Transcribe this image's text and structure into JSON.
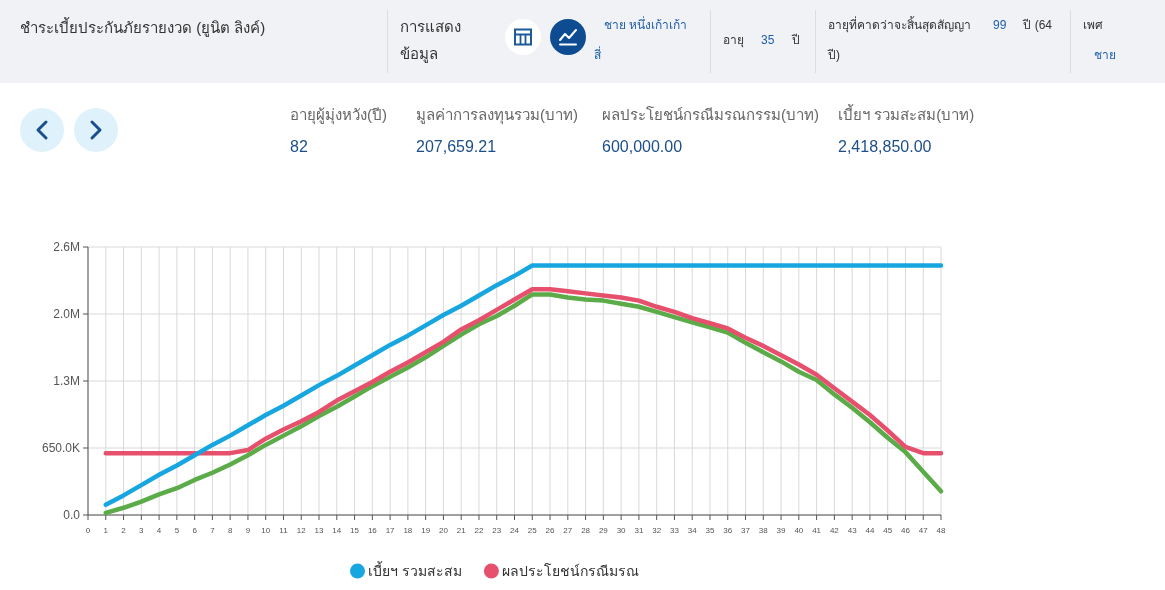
{
  "chart_data": {
    "type": "line",
    "title": "ชำระเบี้ยประกันภัยรายงวด (ยูนิต ลิงค์)",
    "annotations": [
      "การแสดงข้อมูล",
      "ชาย หนึ่งเก้าเก้าสี่",
      "อายุ",
      "35",
      "ปี",
      "อายุที่คาดว่าจะสิ้นสุดสัญญา",
      "99",
      "ปี (64 ปี)",
      "เพศ",
      "ชาย",
      "อายุผู้มุ่งหวัง(ปี)",
      "82",
      "มูลค่าการลงทุนรวม(บาท)",
      "207,659.21",
      "ผลประโยชน์กรณีมรณกรรม(บาท)",
      "600,000.00",
      "เบี้ยฯ รวมสะสม(บาท)",
      "2,418,850.00"
    ],
    "x": [
      1,
      2,
      3,
      4,
      5,
      6,
      7,
      8,
      9,
      10,
      11,
      12,
      13,
      14,
      15,
      16,
      17,
      18,
      19,
      20,
      21,
      22,
      23,
      24,
      25,
      26,
      27,
      28,
      29,
      30,
      31,
      32,
      33,
      34,
      35,
      36,
      37,
      38,
      39,
      40,
      41,
      42,
      43,
      44,
      45,
      46,
      47,
      48
    ],
    "xlim": [
      0,
      48
    ],
    "xticks": [
      0,
      1,
      2,
      3,
      4,
      5,
      6,
      7,
      8,
      9,
      10,
      11,
      12,
      13,
      14,
      15,
      16,
      17,
      18,
      19,
      20,
      21,
      22,
      23,
      24,
      25,
      26,
      27,
      28,
      29,
      30,
      31,
      32,
      33,
      34,
      35,
      36,
      37,
      38,
      39,
      40,
      41,
      42,
      43,
      44,
      45,
      46,
      47,
      48
    ],
    "ylim": [
      0,
      2600000
    ],
    "yticks": [
      {
        "value": 0,
        "label": "0.0"
      },
      {
        "value": 650000,
        "label": "650.0K"
      },
      {
        "value": 1300000,
        "label": "1.3M"
      },
      {
        "value": 1950000,
        "label": "2.0M"
      },
      {
        "value": 2600000,
        "label": "2.6M"
      }
    ],
    "grid": true,
    "legend": "bottom",
    "series": [
      {
        "name": "เบี้ยฯ รวมสะสม",
        "color": "#18a6e0",
        "values": [
          100000,
          190000,
          290000,
          390000,
          480000,
          580000,
          680000,
          770000,
          870000,
          970000,
          1060000,
          1160000,
          1260000,
          1350000,
          1450000,
          1550000,
          1650000,
          1740000,
          1840000,
          1940000,
          2030000,
          2130000,
          2230000,
          2320000,
          2420000,
          2420000,
          2420000,
          2420000,
          2420000,
          2420000,
          2420000,
          2420000,
          2420000,
          2420000,
          2420000,
          2420000,
          2420000,
          2420000,
          2420000,
          2420000,
          2420000,
          2420000,
          2420000,
          2420000,
          2420000,
          2420000,
          2420000,
          2420000
        ]
      },
      {
        "name": "ผลประโยชน์กรณีมรณ",
        "color": "#e6506d",
        "values": [
          600000,
          600000,
          600000,
          600000,
          600000,
          600000,
          600000,
          600000,
          630000,
          740000,
          830000,
          910000,
          1000000,
          1110000,
          1200000,
          1290000,
          1390000,
          1480000,
          1580000,
          1680000,
          1800000,
          1890000,
          1990000,
          2090000,
          2190000,
          2190000,
          2170000,
          2150000,
          2130000,
          2110000,
          2080000,
          2020000,
          1970000,
          1910000,
          1860000,
          1810000,
          1720000,
          1640000,
          1550000,
          1460000,
          1360000,
          1230000,
          1100000,
          970000,
          820000,
          660000,
          600000,
          600000
        ]
      },
      {
        "color": "#5bab48",
        "values": [
          20000,
          70000,
          130000,
          200000,
          260000,
          340000,
          410000,
          490000,
          580000,
          680000,
          770000,
          860000,
          960000,
          1050000,
          1150000,
          1250000,
          1340000,
          1430000,
          1530000,
          1640000,
          1750000,
          1850000,
          1930000,
          2030000,
          2140000,
          2140000,
          2110000,
          2090000,
          2080000,
          2050000,
          2020000,
          1970000,
          1920000,
          1870000,
          1820000,
          1770000,
          1670000,
          1580000,
          1490000,
          1390000,
          1310000,
          1170000,
          1040000,
          900000,
          750000,
          610000,
          420000,
          230000
        ]
      }
    ]
  }
}
